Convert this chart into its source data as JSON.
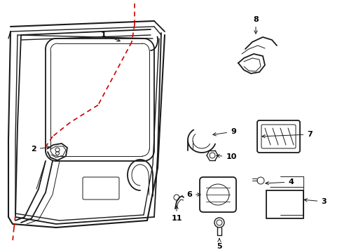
{
  "bg_color": "#ffffff",
  "line_color": "#1a1a1a",
  "red_dash_color": "#cc0000",
  "label_color": "#000000",
  "figsize": [
    4.89,
    3.6
  ],
  "dpi": 100
}
